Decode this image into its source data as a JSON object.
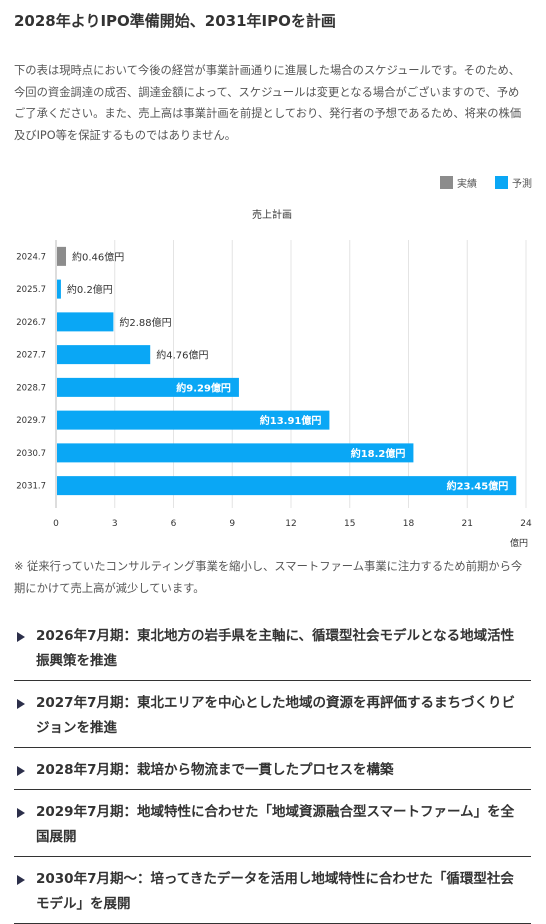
{
  "heading": "2028年よりIPO準備開始、2031年IPOを計画",
  "intro": "下の表は現時点において今後の経営が事業計画通りに進展した場合のスケジュールです。そのため、今回の資金調達の成否、調達金額によって、スケジュールは変更となる場合がございますので、予めご了承ください。また、売上高は事業計画を前提としており、発行者の予想であるため、将来の株価及びIPO等を保証するものではありません。",
  "legend": [
    {
      "label": "実績",
      "color": "#8c8c8c"
    },
    {
      "label": "予測",
      "color": "#0aa7f5"
    }
  ],
  "chart_data": {
    "type": "bar",
    "orientation": "horizontal",
    "title": "売上計画",
    "xlabel": "億円",
    "ylabel": "",
    "categories": [
      "2024.7",
      "2025.7",
      "2026.7",
      "2027.7",
      "2028.7",
      "2029.7",
      "2030.7",
      "2031.7"
    ],
    "values": [
      0.46,
      0.2,
      2.88,
      4.76,
      9.29,
      13.91,
      18.2,
      23.45
    ],
    "labels": [
      "約0.46億円",
      "約0.2億円",
      "約2.88億円",
      "約4.76億円",
      "約9.29億円",
      "約13.91億円",
      "約18.2億円",
      "約23.45億円"
    ],
    "kinds": [
      "実績",
      "予測",
      "予測",
      "予測",
      "予測",
      "予測",
      "予測",
      "予測"
    ],
    "colors": {
      "実績": "#8c8c8c",
      "予測": "#0aa7f5"
    },
    "xlim": [
      0,
      24
    ],
    "xticks": [
      0,
      3,
      6,
      9,
      12,
      15,
      18,
      21,
      24
    ],
    "grid": true,
    "legend_position": "top-right"
  },
  "note": "※ 従来行っていたコンサルティング事業を縮小し、スマートファーム事業に注力するため前期から今期にかけて売上高が減少しています。",
  "milestones": [
    "2026年7月期：東北地方の岩手県を主軸に、循環型社会モデルとなる地域活性振興策を推進",
    "2027年7月期：東北エリアを中心とした地域の資源を再評価するまちづくりビジョンを推進",
    "2028年7月期：栽培から物流まで一貫したプロセスを構築",
    "2029年7月期：地域特性に合わせた「地域資源融合型スマートファーム」を全国展開",
    "2030年7月期〜：培ってきたデータを活用し地域特性に合わせた「循環型社会モデル」を展開"
  ]
}
